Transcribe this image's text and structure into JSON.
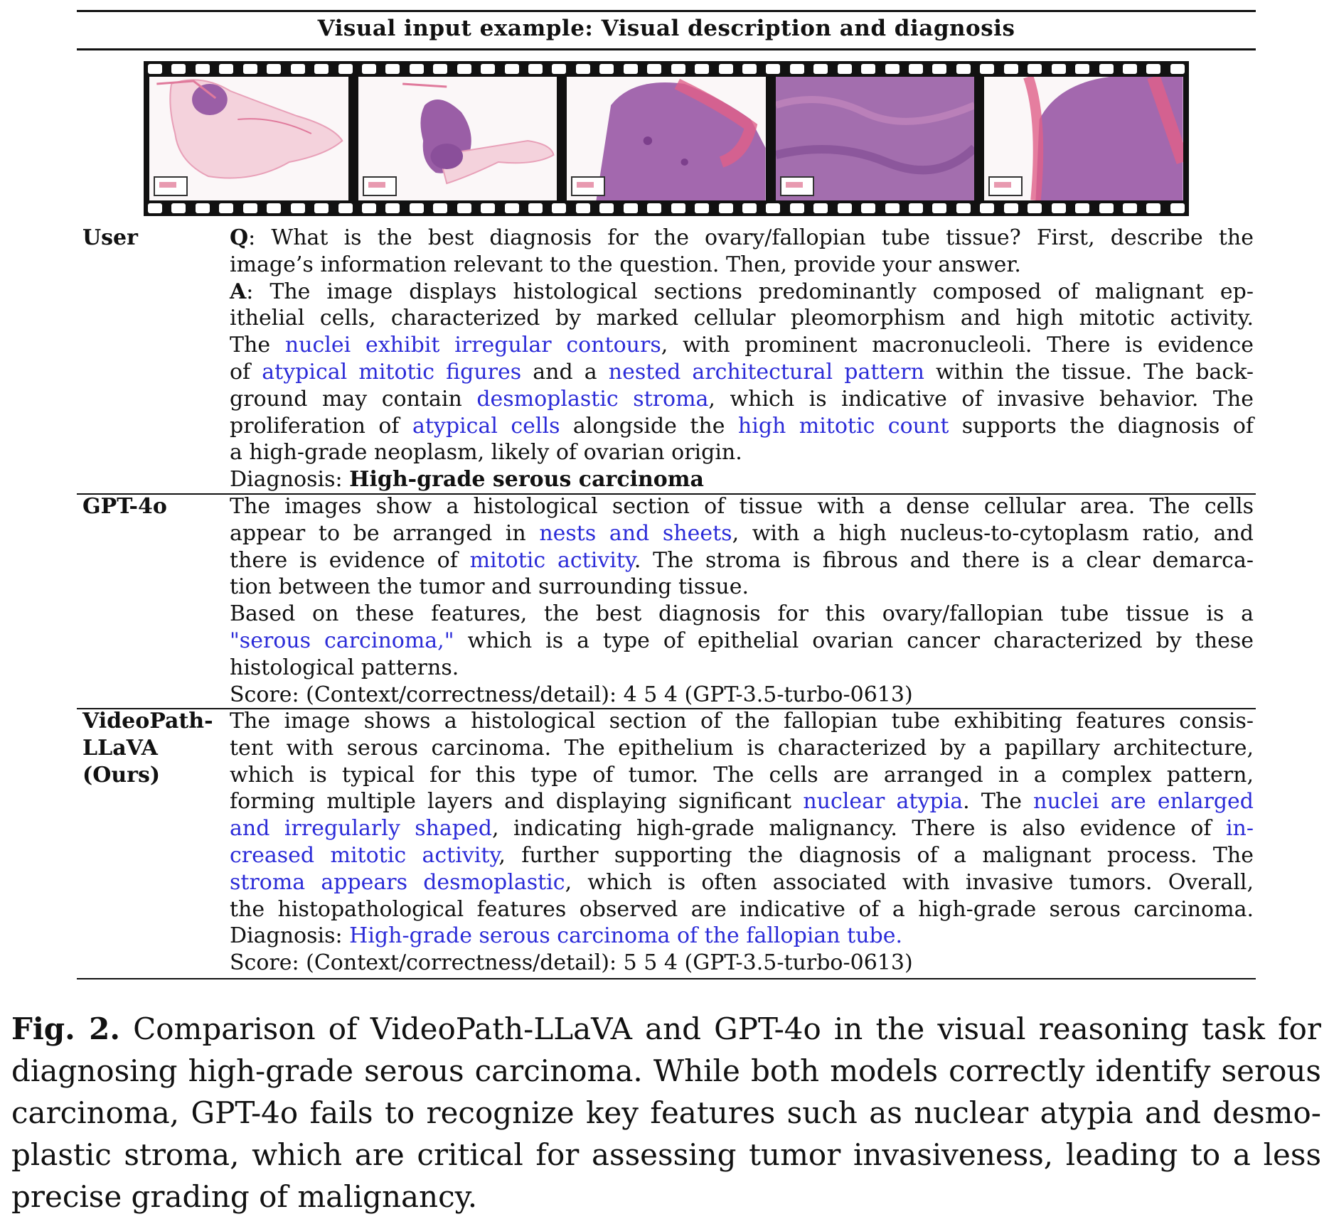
{
  "table_title": "Visual input example: Visual description and diagnosis",
  "rows": {
    "user": {
      "label": "User",
      "q_prefix": "Q",
      "q_lines": [
        ": What is the best diagnosis for the ovary/fallopian tube tissue? First, describe the",
        "image’s information relevant to the question. Then, provide your answer."
      ],
      "a_prefix": "A",
      "a_line1": ": The image displays histological sections predominantly composed of malignant ep-",
      "a_line2": "ithelial cells, characterized by marked cellular pleomorphism and high mitotic activity.",
      "a_line3": [
        "The ",
        "nuclei exhibit irregular contours",
        ", with prominent macronucleoli. There is evidence"
      ],
      "a_line4": [
        "of ",
        "atypical mitotic figures",
        " and a ",
        "nested architectural pattern",
        " within the tissue. The back-"
      ],
      "a_line5": [
        "ground may contain ",
        "desmoplastic stroma",
        ", which is indicative of invasive behavior. The"
      ],
      "a_line6": [
        "proliferation of ",
        "atypical cells",
        " alongside the ",
        "high mitotic count",
        " supports the diagnosis of"
      ],
      "a_line7": "a high-grade neoplasm, likely of ovarian origin.",
      "diagnosis_label": "Diagnosis: ",
      "diagnosis_value": "High-grade serous carcinoma"
    },
    "gpt4o": {
      "label": "GPT-4o",
      "line1": "The images show a histological section of tissue with a dense cellular area. The cells",
      "line2": [
        "appear to be arranged in ",
        "nests and sheets",
        ", with a high nucleus-to-cytoplasm ratio, and"
      ],
      "line3": [
        "there is evidence of ",
        "mitotic activity",
        ". The stroma is fibrous and there is a clear demarca-"
      ],
      "line4": "tion between the tumor and surrounding tissue.",
      "line5": "Based on these features, the best diagnosis for this ovary/fallopian tube tissue is a",
      "line6": [
        "\"serous carcinoma,\"",
        " which is a type of epithelial ovarian cancer characterized by these"
      ],
      "line7": "histological patterns.",
      "score": "Score: (Context/correctness/detail): 4 5 4 (GPT-3.5-turbo-0613)"
    },
    "ours": {
      "label_lines": [
        "VideoPath-",
        "LLaVA",
        "(Ours)"
      ],
      "line1": "The image shows a histological section of the fallopian tube exhibiting features consis-",
      "line2": "tent with serous carcinoma. The epithelium is characterized by a papillary architecture,",
      "line3": "which is typical for this type of tumor. The cells are arranged in a complex pattern,",
      "line4": [
        "forming multiple layers and displaying significant ",
        "nuclear atypia",
        ". The ",
        "nuclei are enlarged"
      ],
      "line5": [
        "and irregularly shaped",
        ", indicating high-grade malignancy. There is also evidence of ",
        "in-"
      ],
      "line6": [
        "creased mitotic activity",
        ", further supporting the diagnosis of a malignant process. The"
      ],
      "line7": [
        "stroma appears desmoplastic",
        ", which is often associated with invasive tumors. Overall,"
      ],
      "line8": "the histopathological features observed are indicative of a high-grade serous carcinoma.",
      "diagnosis_label": "Diagnosis: ",
      "diagnosis_value": "High-grade serous carcinoma of the fallopian tube.",
      "score": "Score: (Context/correctness/detail): 5 5 4 (GPT-3.5-turbo-0613)"
    }
  },
  "caption": {
    "label": "Fig. 2.",
    "lines": [
      " Comparison of VideoPath-LLaVA and GPT-4o in the visual reasoning task for",
      "diagnosing high-grade serous carcinoma. While both models correctly identify serous",
      "carcinoma, GPT-4o fails to recognize key features such as nuclear atypia and desmo-",
      "plastic stroma, which are critical for assessing tumor invasiveness, leading to a less",
      "precise grading of malignancy."
    ]
  },
  "colors": {
    "highlight": "#2b2bd8",
    "tissue_pink": "#e79ab6",
    "tissue_purple": "#9a5ea6"
  }
}
